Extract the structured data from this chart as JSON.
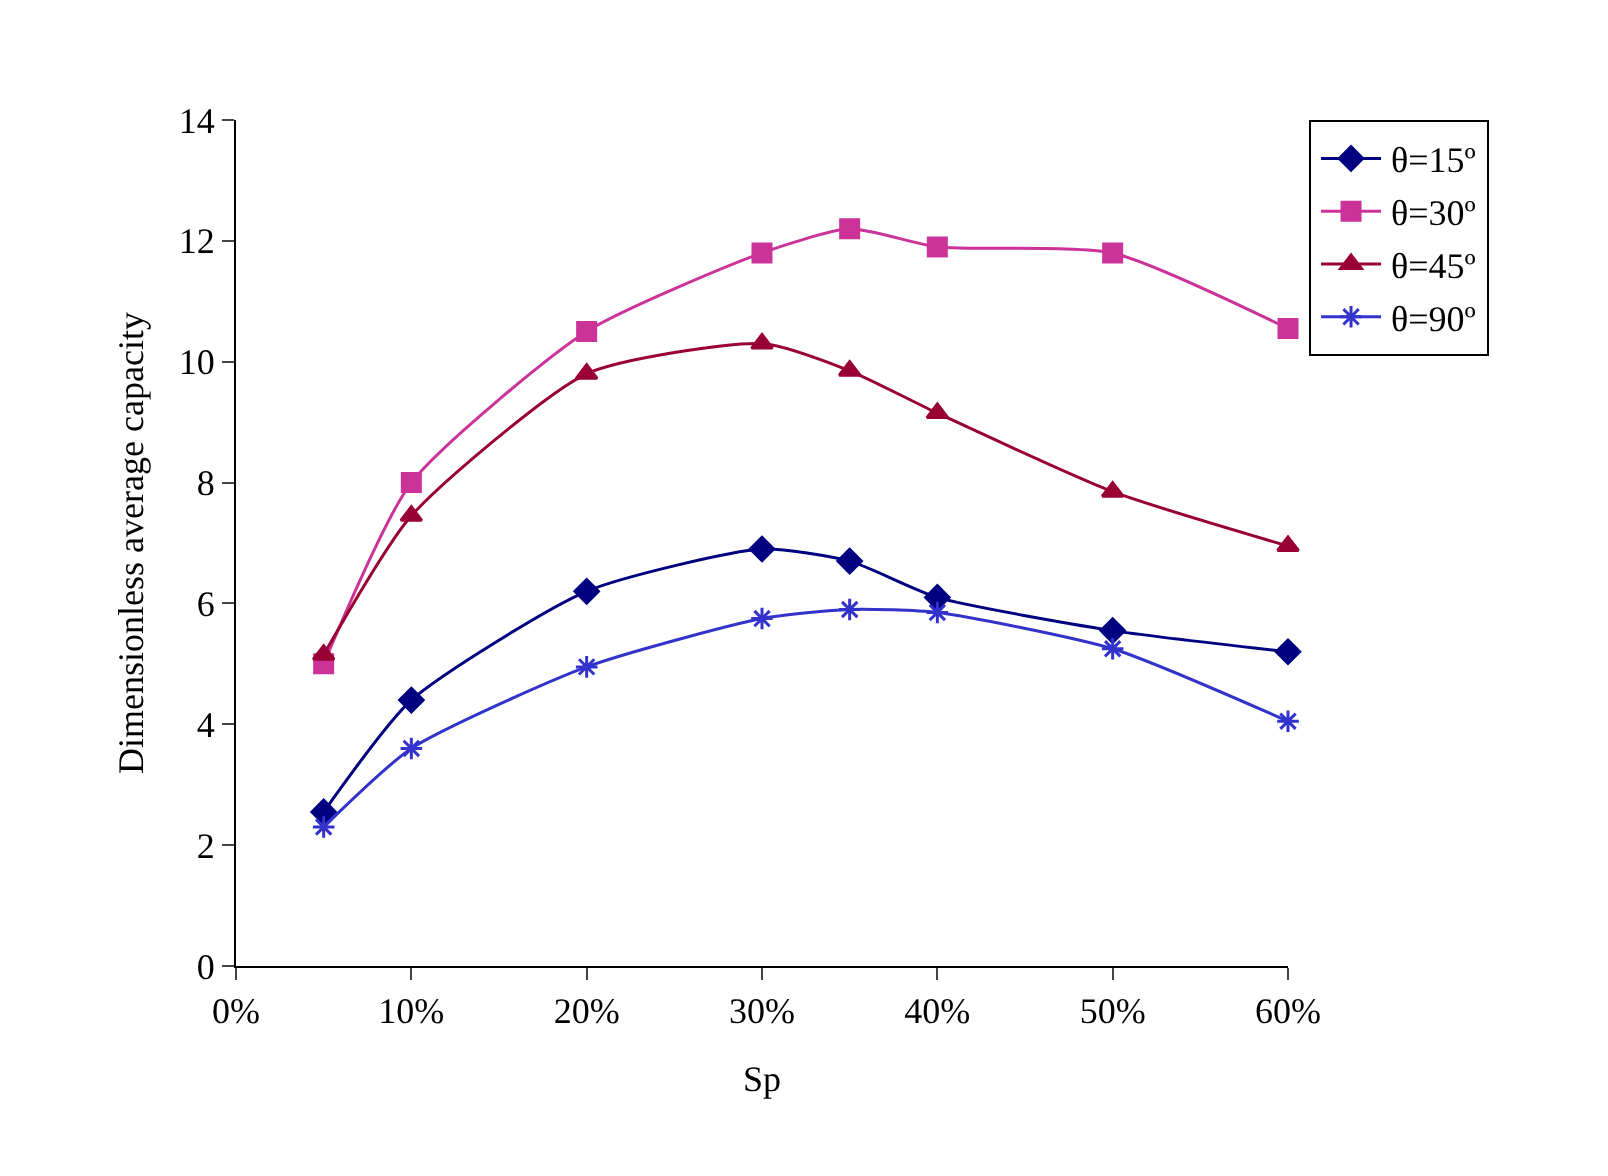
{
  "chart_data": {
    "type": "line",
    "xlabel": "Sp",
    "ylabel": "Dimensionless average capacity",
    "x": [
      5,
      10,
      20,
      30,
      35,
      40,
      50,
      60
    ],
    "xlim": [
      0,
      60
    ],
    "xticks": [
      {
        "value": 0,
        "label": "0%"
      },
      {
        "value": 10,
        "label": "10%"
      },
      {
        "value": 20,
        "label": "20%"
      },
      {
        "value": 30,
        "label": "30%"
      },
      {
        "value": 40,
        "label": "40%"
      },
      {
        "value": 50,
        "label": "50%"
      },
      {
        "value": 60,
        "label": "60%"
      }
    ],
    "ylim": [
      0,
      14
    ],
    "yticks": [
      0,
      2,
      4,
      6,
      8,
      10,
      12,
      14
    ],
    "grid": false,
    "legend": "right",
    "line_style": "solid",
    "series": [
      {
        "name": "θ=15º",
        "color": "#000080",
        "marker": "diamond",
        "values": [
          2.55,
          4.4,
          6.2,
          6.9,
          6.7,
          6.1,
          5.55,
          5.2
        ]
      },
      {
        "name": "θ=30º",
        "color": "#cc3399",
        "marker": "square",
        "values": [
          5.0,
          8.0,
          10.5,
          11.8,
          12.2,
          11.9,
          11.8,
          10.55
        ]
      },
      {
        "name": "θ=45º",
        "color": "#990033",
        "marker": "triangle",
        "values": [
          5.15,
          7.45,
          9.8,
          10.3,
          9.85,
          9.15,
          7.85,
          6.95
        ]
      },
      {
        "name": "θ=90º",
        "color": "#3333cc",
        "marker": "cross",
        "values": [
          2.3,
          3.6,
          4.95,
          5.75,
          5.9,
          5.85,
          5.25,
          4.05
        ]
      }
    ]
  }
}
